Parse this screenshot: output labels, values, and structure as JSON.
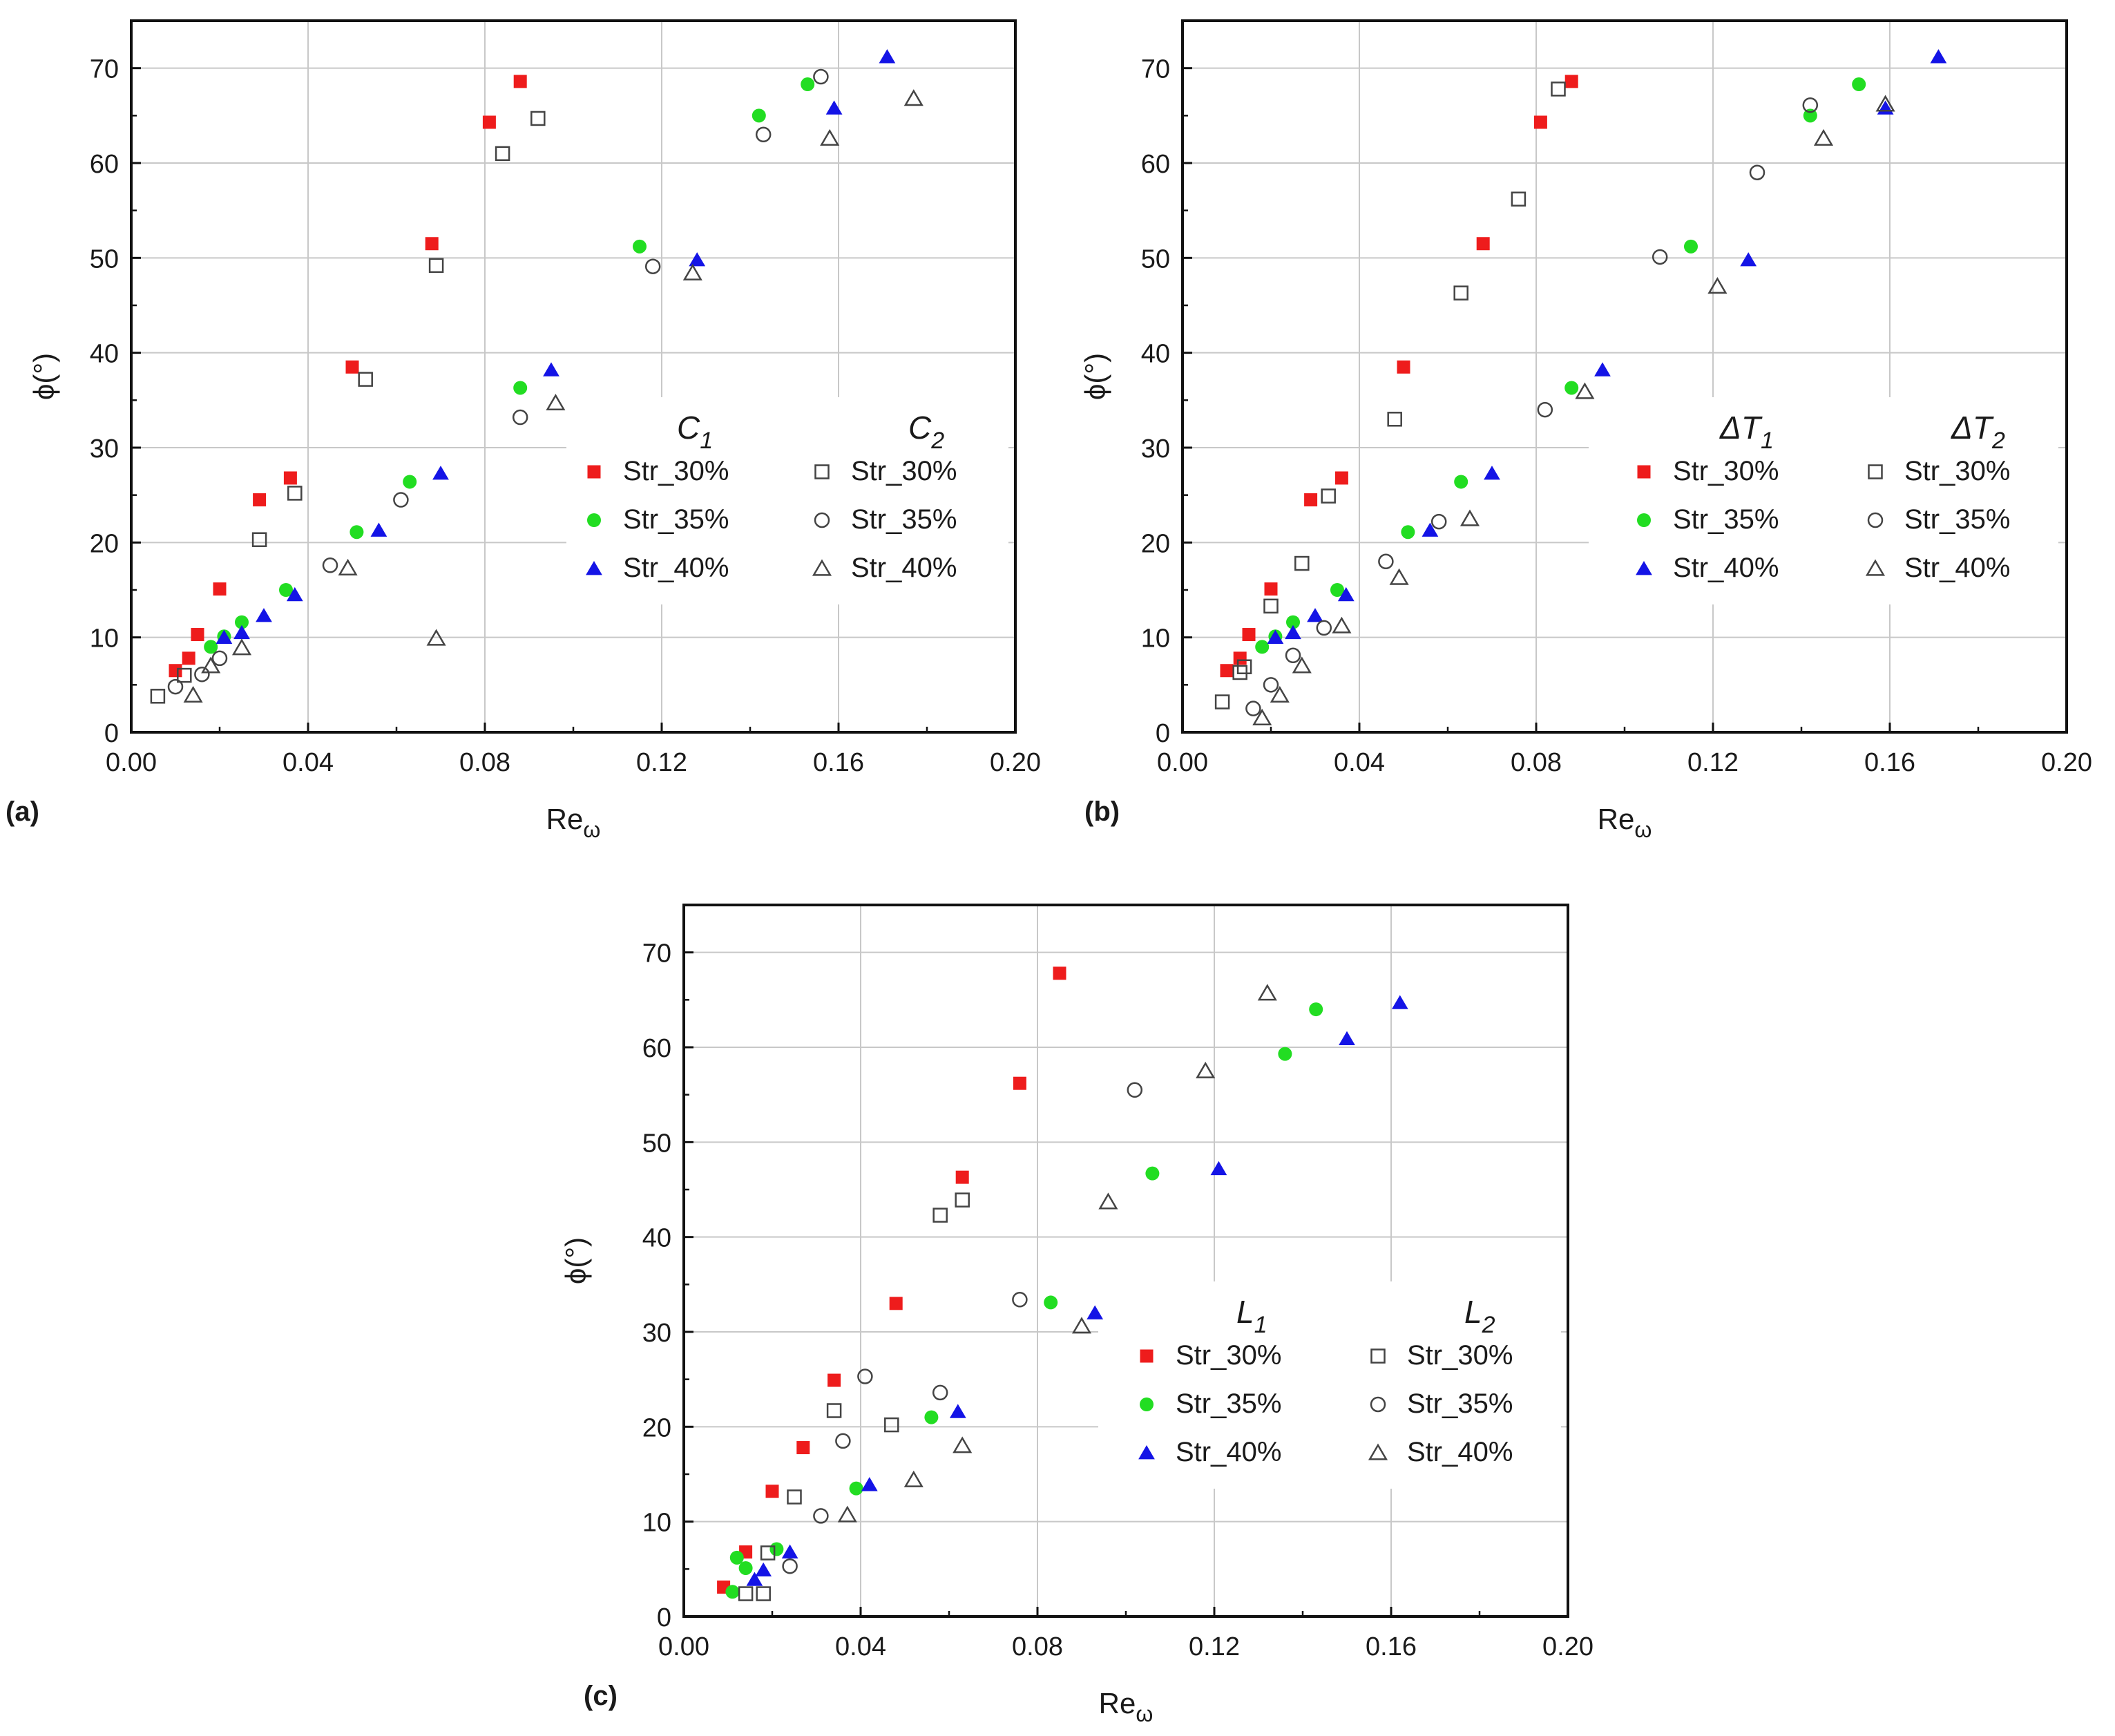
{
  "figure": {
    "y_axis_label": "ϕ(°)",
    "x_axis_label_base": "Re",
    "x_axis_label_sub": "ω",
    "series_names": [
      "Str_30%",
      "Str_35%",
      "Str_40%"
    ]
  },
  "colors": {
    "red": "#ee1c1c",
    "green": "#22dd22",
    "blue": "#1414e6",
    "open": "#444444"
  },
  "chart_data": [
    {
      "type": "scatter",
      "panel_label": "(a)",
      "group_titles": [
        {
          "main": "C",
          "sub": "1"
        },
        {
          "main": "C",
          "sub": "2"
        }
      ],
      "xlim": [
        0,
        0.2
      ],
      "ylim": [
        0,
        75
      ],
      "x_ticks": [
        "0.00",
        "0.04",
        "0.08",
        "0.12",
        "0.16",
        "0.20"
      ],
      "y_ticks": [
        "0",
        "10",
        "20",
        "30",
        "40",
        "50",
        "60",
        "70"
      ],
      "series": [
        {
          "name": "Str_30%",
          "group": 1,
          "marker": "filled-square",
          "color": "red",
          "x": [
            0.01,
            0.013,
            0.015,
            0.02,
            0.029,
            0.036,
            0.05,
            0.068,
            0.081,
            0.088
          ],
          "y": [
            6.5,
            7.8,
            10.3,
            15.1,
            24.5,
            26.8,
            38.5,
            51.5,
            64.3,
            68.6
          ]
        },
        {
          "name": "Str_35%",
          "group": 1,
          "marker": "filled-circle",
          "color": "green",
          "x": [
            0.018,
            0.021,
            0.025,
            0.035,
            0.051,
            0.063,
            0.088,
            0.115,
            0.142,
            0.153
          ],
          "y": [
            9.0,
            10.1,
            11.6,
            15.0,
            21.1,
            26.4,
            36.3,
            51.2,
            65.0,
            68.3
          ]
        },
        {
          "name": "Str_40%",
          "group": 1,
          "marker": "filled-triangle",
          "color": "blue",
          "x": [
            0.021,
            0.025,
            0.03,
            0.037,
            0.056,
            0.07,
            0.095,
            0.128,
            0.159,
            0.171
          ],
          "y": [
            10.0,
            10.5,
            12.3,
            14.5,
            21.3,
            27.3,
            38.2,
            49.8,
            65.8,
            71.2
          ]
        },
        {
          "name": "Str_30%",
          "group": 2,
          "marker": "open-square",
          "color": "open",
          "x": [
            0.006,
            0.012,
            0.029,
            0.037,
            0.053,
            0.069,
            0.084,
            0.092
          ],
          "y": [
            3.8,
            6.0,
            20.3,
            25.2,
            37.2,
            49.2,
            61.0,
            64.7
          ]
        },
        {
          "name": "Str_35%",
          "group": 2,
          "marker": "open-circle",
          "color": "open",
          "x": [
            0.01,
            0.016,
            0.02,
            0.045,
            0.061,
            0.088,
            0.118,
            0.143,
            0.156
          ],
          "y": [
            4.8,
            6.1,
            7.8,
            17.6,
            24.5,
            33.2,
            49.1,
            63.0,
            69.1
          ]
        },
        {
          "name": "Str_40%",
          "group": 2,
          "marker": "open-triangle",
          "color": "open",
          "x": [
            0.014,
            0.018,
            0.025,
            0.049,
            0.069,
            0.096,
            0.127,
            0.158,
            0.177
          ],
          "y": [
            3.9,
            7.0,
            8.9,
            17.3,
            9.9,
            34.7,
            48.4,
            62.6,
            66.8
          ]
        }
      ]
    },
    {
      "type": "scatter",
      "panel_label": "(b)",
      "group_titles": [
        {
          "main": "ΔT",
          "sub": "1"
        },
        {
          "main": "ΔT",
          "sub": "2"
        }
      ],
      "xlim": [
        0,
        0.2
      ],
      "ylim": [
        0,
        75
      ],
      "x_ticks": [
        "0.00",
        "0.04",
        "0.08",
        "0.12",
        "0.16",
        "0.20"
      ],
      "y_ticks": [
        "0",
        "10",
        "20",
        "30",
        "40",
        "50",
        "60",
        "70"
      ],
      "series": [
        {
          "name": "Str_30%",
          "group": 1,
          "marker": "filled-square",
          "color": "red",
          "x": [
            0.01,
            0.013,
            0.015,
            0.02,
            0.029,
            0.036,
            0.05,
            0.068,
            0.081,
            0.088
          ],
          "y": [
            6.5,
            7.8,
            10.3,
            15.1,
            24.5,
            26.8,
            38.5,
            51.5,
            64.3,
            68.6
          ]
        },
        {
          "name": "Str_35%",
          "group": 1,
          "marker": "filled-circle",
          "color": "green",
          "x": [
            0.018,
            0.021,
            0.025,
            0.035,
            0.051,
            0.063,
            0.088,
            0.115,
            0.142,
            0.153
          ],
          "y": [
            9.0,
            10.1,
            11.6,
            15.0,
            21.1,
            26.4,
            36.3,
            51.2,
            65.0,
            68.3
          ]
        },
        {
          "name": "Str_40%",
          "group": 1,
          "marker": "filled-triangle",
          "color": "blue",
          "x": [
            0.021,
            0.025,
            0.03,
            0.037,
            0.056,
            0.07,
            0.095,
            0.128,
            0.159,
            0.171
          ],
          "y": [
            10.0,
            10.5,
            12.3,
            14.5,
            21.3,
            27.3,
            38.2,
            49.8,
            65.8,
            71.2
          ]
        },
        {
          "name": "Str_30%",
          "group": 2,
          "marker": "open-square",
          "color": "open",
          "x": [
            0.009,
            0.013,
            0.014,
            0.02,
            0.027,
            0.033,
            0.048,
            0.063,
            0.076,
            0.085
          ],
          "y": [
            3.2,
            6.3,
            6.9,
            13.3,
            17.8,
            24.9,
            33.0,
            46.3,
            56.2,
            67.8
          ]
        },
        {
          "name": "Str_35%",
          "group": 2,
          "marker": "open-circle",
          "color": "open",
          "x": [
            0.016,
            0.02,
            0.025,
            0.032,
            0.046,
            0.058,
            0.082,
            0.108,
            0.13,
            0.142
          ],
          "y": [
            2.5,
            5.0,
            8.1,
            11.0,
            18.0,
            22.2,
            34.0,
            50.1,
            59.0,
            66.1
          ]
        },
        {
          "name": "Str_40%",
          "group": 2,
          "marker": "open-triangle",
          "color": "open",
          "x": [
            0.018,
            0.022,
            0.027,
            0.036,
            0.049,
            0.065,
            0.091,
            0.121,
            0.145,
            0.159
          ],
          "y": [
            1.5,
            3.9,
            7.0,
            11.2,
            16.3,
            22.5,
            35.9,
            47.0,
            62.6,
            66.2
          ]
        }
      ]
    },
    {
      "type": "scatter",
      "panel_label": "(c)",
      "group_titles": [
        {
          "main": "L",
          "sub": "1"
        },
        {
          "main": "L",
          "sub": "2"
        }
      ],
      "xlim": [
        0,
        0.2
      ],
      "ylim": [
        0,
        75
      ],
      "x_ticks": [
        "0.00",
        "0.04",
        "0.08",
        "0.12",
        "0.16",
        "0.20"
      ],
      "y_ticks": [
        "0",
        "10",
        "20",
        "30",
        "40",
        "50",
        "60",
        "70"
      ],
      "series": [
        {
          "name": "Str_30%",
          "group": 1,
          "marker": "filled-square",
          "color": "red",
          "x": [
            0.009,
            0.014,
            0.02,
            0.027,
            0.034,
            0.048,
            0.063,
            0.076,
            0.085
          ],
          "y": [
            3.1,
            6.8,
            13.2,
            17.8,
            24.9,
            33.0,
            46.3,
            56.2,
            67.8
          ]
        },
        {
          "name": "Str_35%",
          "group": 1,
          "marker": "filled-circle",
          "color": "green",
          "x": [
            0.011,
            0.012,
            0.014,
            0.021,
            0.039,
            0.056,
            0.083,
            0.106,
            0.136,
            0.143
          ],
          "y": [
            2.6,
            6.2,
            5.1,
            7.1,
            13.5,
            21.0,
            33.1,
            46.7,
            59.3,
            64.0
          ]
        },
        {
          "name": "Str_40%",
          "group": 1,
          "marker": "filled-triangle",
          "color": "blue",
          "x": [
            0.016,
            0.018,
            0.024,
            0.042,
            0.062,
            0.093,
            0.121,
            0.15,
            0.162
          ],
          "y": [
            3.9,
            4.9,
            6.8,
            13.9,
            21.6,
            32.0,
            47.2,
            60.9,
            64.7
          ]
        },
        {
          "name": "Str_30%",
          "group": 2,
          "marker": "open-square",
          "color": "open",
          "x": [
            0.014,
            0.018,
            0.019,
            0.025,
            0.034,
            0.047,
            0.058,
            0.063
          ],
          "y": [
            2.4,
            2.4,
            6.7,
            12.6,
            21.7,
            20.2,
            42.3,
            43.9
          ]
        },
        {
          "name": "Str_35%",
          "group": 2,
          "marker": "open-circle",
          "color": "open",
          "x": [
            0.024,
            0.031,
            0.036,
            0.041,
            0.058,
            0.076,
            0.102
          ],
          "y": [
            5.3,
            10.6,
            18.5,
            25.3,
            23.6,
            33.4,
            55.5
          ]
        },
        {
          "name": "Str_40%",
          "group": 2,
          "marker": "open-triangle",
          "color": "open",
          "x": [
            0.037,
            0.052,
            0.063,
            0.09,
            0.096,
            0.118,
            0.132
          ],
          "y": [
            10.7,
            14.4,
            18.0,
            30.6,
            43.7,
            57.5,
            65.7
          ]
        }
      ]
    }
  ]
}
